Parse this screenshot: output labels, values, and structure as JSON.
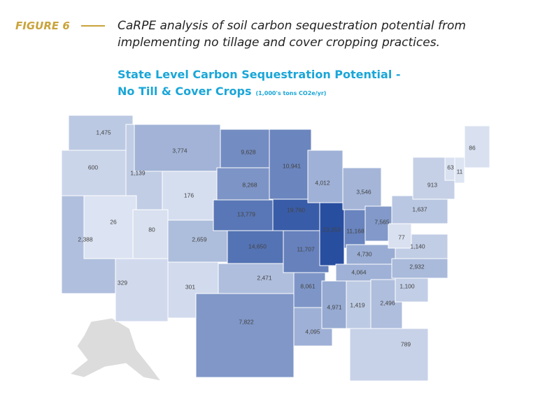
{
  "figure_label": "FIGURE 6",
  "headline": [
    "CaRPE analysis of soil carbon sequestration potential from",
    "implementing no tillage and cover cropping practices."
  ],
  "map_title": [
    "State Level Carbon Sequestration Potential -",
    "No Till & Cover Crops"
  ],
  "units": "(1,000's tons CO2e/yr)",
  "states": [
    {
      "value": 1475,
      "label": "1,475"
    },
    {
      "value": 600,
      "label": "600"
    },
    {
      "value": 2388,
      "label": "2,388"
    },
    {
      "value": 1139,
      "label": "1,139"
    },
    {
      "value": 26,
      "label": "26"
    },
    {
      "value": 3774,
      "label": "3,774"
    },
    {
      "value": 176,
      "label": "176"
    },
    {
      "value": 80,
      "label": "80"
    },
    {
      "value": 2659,
      "label": "2,659"
    },
    {
      "value": 329,
      "label": "329"
    },
    {
      "value": 301,
      "label": "301"
    },
    {
      "value": 9628,
      "label": "9,628"
    },
    {
      "value": 8268,
      "label": "8,268"
    },
    {
      "value": 13779,
      "label": "13,779"
    },
    {
      "value": 14650,
      "label": "14,650"
    },
    {
      "value": 2471,
      "label": "2,471"
    },
    {
      "value": 7822,
      "label": "7,822"
    },
    {
      "value": 10941,
      "label": "10,941"
    },
    {
      "value": 19760,
      "label": "19,760"
    },
    {
      "value": 11707,
      "label": "11,707"
    },
    {
      "value": 8061,
      "label": "8,061"
    },
    {
      "value": 4095,
      "label": "4,095"
    },
    {
      "value": 4012,
      "label": "4,012"
    },
    {
      "value": 23253,
      "label": "23,253"
    },
    {
      "value": 3546,
      "label": "3,546"
    },
    {
      "value": 11168,
      "label": "11,168"
    },
    {
      "value": 7565,
      "label": "7,565"
    },
    {
      "value": 4730,
      "label": "4,730"
    },
    {
      "value": 4064,
      "label": "4,064"
    },
    {
      "value": 4971,
      "label": "4,971"
    },
    {
      "value": 1419,
      "label": "1,419"
    },
    {
      "value": 2496,
      "label": "2,496"
    },
    {
      "value": 789,
      "label": "789"
    },
    {
      "value": 1100,
      "label": "1,100"
    },
    {
      "value": 2932,
      "label": "2,932"
    },
    {
      "value": 1140,
      "label": "1,140"
    },
    {
      "value": 77,
      "label": "77"
    },
    {
      "value": 1637,
      "label": "1,637"
    },
    {
      "value": 913,
      "label": "913"
    },
    {
      "value": 63,
      "label": "63"
    },
    {
      "value": 11,
      "label": "11"
    },
    {
      "value": 86,
      "label": "86"
    }
  ]
}
